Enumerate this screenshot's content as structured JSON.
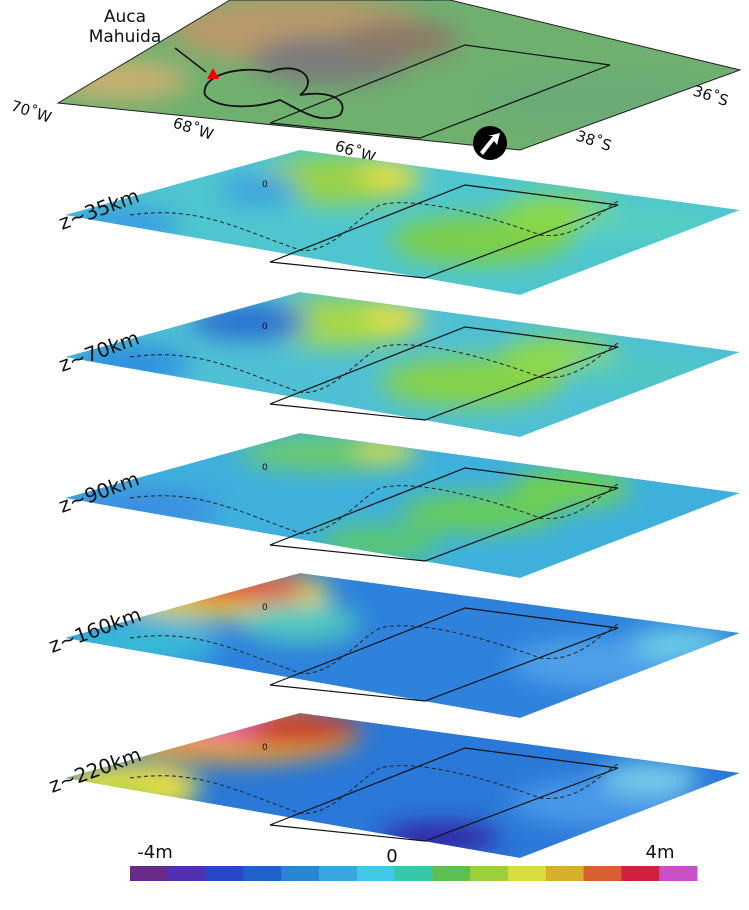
{
  "map": {
    "place_label": [
      "Auca",
      "Mahuida"
    ],
    "longitudes": [
      "70˚W",
      "68˚W",
      "66˚W"
    ],
    "latitudes": [
      "36˚S",
      "38˚S"
    ]
  },
  "slices": [
    {
      "label": "z~35km",
      "contour_label": "0"
    },
    {
      "label": "z~70km",
      "contour_label": "0"
    },
    {
      "label": "z~90km",
      "contour_label": "0"
    },
    {
      "label": "z~160km",
      "contour_label": "0"
    },
    {
      "label": "z~220km",
      "contour_label": "0"
    }
  ],
  "colorbar": {
    "labels": [
      "-4m",
      "0",
      "4m"
    ]
  }
}
